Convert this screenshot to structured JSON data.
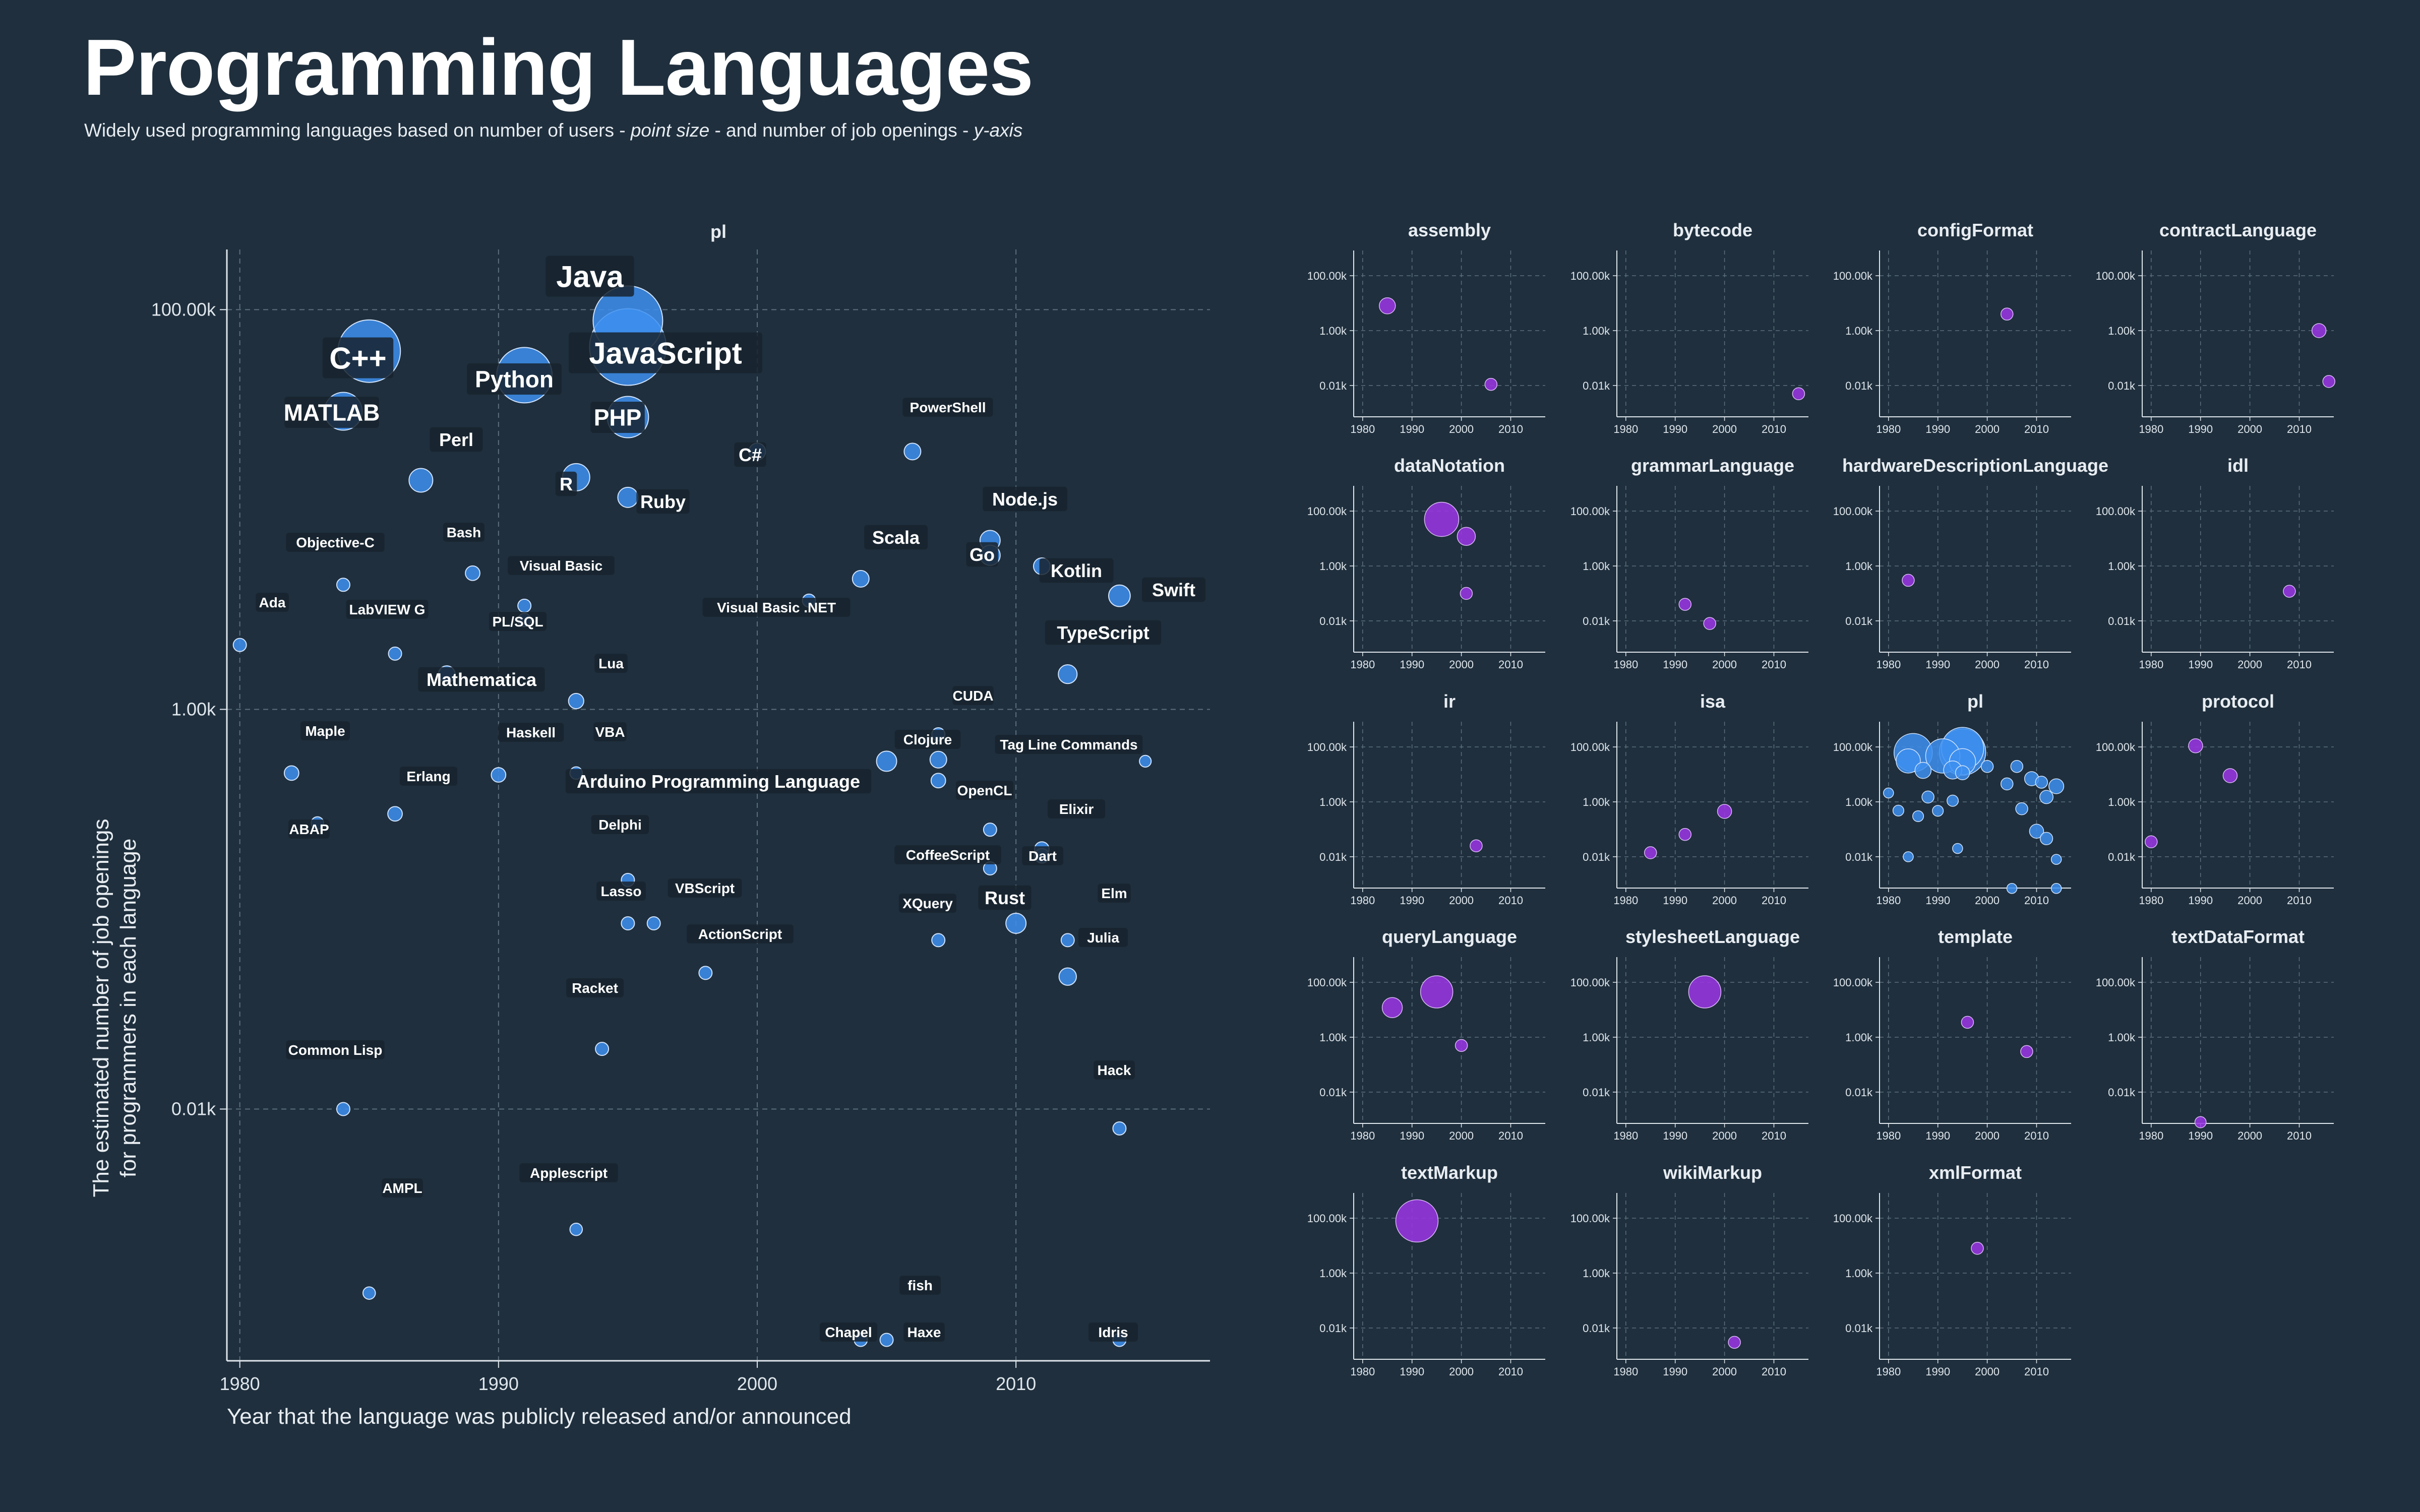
{
  "title": "Programming Languages",
  "subtitle": {
    "part1": "Widely used programming languages based on number of users - ",
    "em1": "point size",
    "part2": " - and number of job openings - ",
    "em2": "y-axis"
  },
  "colors": {
    "background": "#1f2f3d",
    "pl_point": "#3d8ff0",
    "other_point": "#9b35e6",
    "grid": "#5c6e7c",
    "label_bg": "#17232e"
  },
  "chart_data": [
    {
      "type": "scatter",
      "panel": "pl",
      "title": "pl",
      "xlabel": "Year that the language was publicly released and/or announced",
      "ylabel": "The estimated number of job openings for programmers in each language",
      "x_ticks": [
        1980,
        1990,
        2000,
        2010
      ],
      "y_ticks": [
        "0.01k",
        "1.00k",
        "100.00k"
      ],
      "y_scale": "log",
      "xlim": [
        1979.5,
        2017.5
      ],
      "ylim_k": [
        0.00055,
        200
      ],
      "grid": "dashed",
      "points": [
        {
          "name": "Java",
          "x": 1995,
          "y": 88000,
          "users": 9.0,
          "label": "Java",
          "label_size": "xl"
        },
        {
          "name": "JavaScript",
          "x": 1995,
          "y": 65000,
          "users": 10.0,
          "label": "JavaScript",
          "label_size": "xl"
        },
        {
          "name": "C++",
          "x": 1985,
          "y": 62000,
          "users": 8.0,
          "label": "C++",
          "label_size": "xl"
        },
        {
          "name": "Python",
          "x": 1991,
          "y": 47000,
          "users": 7.0,
          "label": "Python",
          "label_size": "lg"
        },
        {
          "name": "MATLAB",
          "x": 1984,
          "y": 31000,
          "users": 4.5,
          "label": "MATLAB",
          "label_size": "lg"
        },
        {
          "name": "PHP",
          "x": 1995,
          "y": 29000,
          "users": 5.0,
          "label": "PHP",
          "label_size": "lg"
        },
        {
          "name": "C#",
          "x": 2000,
          "y": 19500,
          "users": 1.5,
          "label": "C#",
          "label_size": "md"
        },
        {
          "name": "PowerShell",
          "x": 2006,
          "y": 19500,
          "users": 1.5,
          "label": "PowerShell",
          "label_size": "sm"
        },
        {
          "name": "Perl",
          "x": 1987,
          "y": 14000,
          "users": 2.5,
          "label": "Perl",
          "label_size": "md"
        },
        {
          "name": "R",
          "x": 1993,
          "y": 14500,
          "users": 3.0,
          "label": "R",
          "label_size": "md"
        },
        {
          "name": "Ruby",
          "x": 1995,
          "y": 11500,
          "users": 2.0,
          "label": "Ruby",
          "label_size": "md"
        },
        {
          "name": "Node.js",
          "x": 2009,
          "y": 7000,
          "users": 2.0,
          "label": "Node.js",
          "label_size": "md"
        },
        {
          "name": "Go",
          "x": 2009,
          "y": 5900,
          "users": 2.0,
          "label": "Go",
          "label_size": "md"
        },
        {
          "name": "Bash",
          "x": 1989,
          "y": 4800,
          "users": 1.2,
          "label": "Bash",
          "label_size": "sm"
        },
        {
          "name": "Kotlin",
          "x": 2011,
          "y": 5200,
          "users": 1.5,
          "label": "Kotlin",
          "label_size": "md"
        },
        {
          "name": "Scala",
          "x": 2004,
          "y": 4500,
          "users": 1.5,
          "label": "Scala",
          "label_size": "md"
        },
        {
          "name": "Objective-C",
          "x": 1984,
          "y": 4200,
          "users": 1.0,
          "label": "Objective-C",
          "label_size": "sm"
        },
        {
          "name": "Swift",
          "x": 2014,
          "y": 3700,
          "users": 2.2,
          "label": "Swift",
          "label_size": "md"
        },
        {
          "name": "Visual Basic",
          "x": 1991,
          "y": 3300,
          "users": 1.0,
          "label": "Visual Basic",
          "label_size": "sm"
        },
        {
          "name": "Visual Basic .NET",
          "x": 2002,
          "y": 3500,
          "users": 1.0,
          "label": "Visual Basic .NET",
          "label_size": "sm"
        },
        {
          "name": "Visual Basic dup",
          "x": 1991,
          "y": 2800,
          "users": 1.0,
          "label": "",
          "label_size": "sm"
        },
        {
          "name": "Ada",
          "x": 1980,
          "y": 2100,
          "users": 1.0,
          "label": "Ada",
          "label_size": "sm"
        },
        {
          "name": "LabVIEW G",
          "x": 1986,
          "y": 1900,
          "users": 1.0,
          "label": "LabVIEW G",
          "label_size": "sm"
        },
        {
          "name": "PL/SQL",
          "x": 1988,
          "y": 1500,
          "users": 1.5,
          "label": "PL/SQL",
          "label_size": "sm"
        },
        {
          "name": "TypeScript",
          "x": 2012,
          "y": 1500,
          "users": 1.8,
          "label": "TypeScript",
          "label_size": "md"
        },
        {
          "name": "Mathematica",
          "x": 1988,
          "y": 1500,
          "users": 0,
          "label": "Mathematica",
          "label_size": "md"
        },
        {
          "name": "Lua",
          "x": 1993,
          "y": 1100,
          "users": 1.3,
          "label": "Lua",
          "label_size": "sm"
        },
        {
          "name": "CUDA",
          "x": 2007,
          "y": 750,
          "users": 1.0,
          "label": "CUDA",
          "label_size": "sm"
        },
        {
          "name": "Tag Line Commands",
          "x": 2015,
          "y": 550,
          "users": 0.8,
          "label": "Tag Line Commands",
          "label_size": "sm"
        },
        {
          "name": "Clojure",
          "x": 2007,
          "y": 560,
          "users": 1.5,
          "label": "Clojure",
          "label_size": "sm"
        },
        {
          "name": "Arduino Programming Language",
          "x": 2005,
          "y": 550,
          "users": 2.0,
          "label": "Arduino Programming Language",
          "label_size": "md"
        },
        {
          "name": "Maple",
          "x": 1982,
          "y": 480,
          "users": 1.2,
          "label": "Maple",
          "label_size": "sm"
        },
        {
          "name": "Haskell",
          "x": 1990,
          "y": 470,
          "users": 1.2,
          "label": "Haskell",
          "label_size": "sm"
        },
        {
          "name": "VBA",
          "x": 1993,
          "y": 480,
          "users": 0.9,
          "label": "VBA",
          "label_size": "sm"
        },
        {
          "name": "OpenCL",
          "x": 2007,
          "y": 440,
          "users": 1.2,
          "label": "OpenCL",
          "label_size": "sm"
        },
        {
          "name": "Erlang",
          "x": 1986,
          "y": 300,
          "users": 1.2,
          "label": "Erlang",
          "label_size": "sm"
        },
        {
          "name": "ABAP",
          "x": 1983,
          "y": 270,
          "users": 0.9,
          "label": "ABAP",
          "label_size": "sm"
        },
        {
          "name": "Elixir",
          "x": 2009,
          "y": 250,
          "users": 1.0,
          "label": "Elixir",
          "label_size": "sm"
        },
        {
          "name": "Elixir dup",
          "x": 2011,
          "y": 200,
          "users": 1.2,
          "label": "",
          "label_size": "sm"
        },
        {
          "name": "Elixir dup2",
          "x": 2011,
          "y": 185,
          "users": 1.2,
          "label": "",
          "label_size": "sm"
        },
        {
          "name": "OpenCL dup",
          "x": 2009,
          "y": 160,
          "users": 1.0,
          "label": "",
          "label_size": "sm"
        },
        {
          "name": "Delphi",
          "x": 1995,
          "y": 140,
          "users": 1.0,
          "label": "Delphi",
          "label_size": "sm"
        },
        {
          "name": "Delphi dup",
          "x": 1995,
          "y": 85,
          "users": 1.0,
          "label": "",
          "label_size": "sm"
        },
        {
          "name": "Lasso",
          "x": 1996,
          "y": 85,
          "users": 1.0,
          "label": "Lasso",
          "label_size": "sm"
        },
        {
          "name": "CoffeeScript",
          "x": 2007,
          "y": 70,
          "users": 1.0,
          "label": "CoffeeScript",
          "label_size": "sm"
        },
        {
          "name": "Dart",
          "x": 2010,
          "y": 85,
          "users": 2.0,
          "label": "Dart",
          "label_size": "sm"
        },
        {
          "name": "Elm",
          "x": 2012,
          "y": 70,
          "users": 1.0,
          "label": "Elm",
          "label_size": "sm"
        },
        {
          "name": "VBScript",
          "x": 1998,
          "y": 48,
          "users": 1.0,
          "label": "VBScript",
          "label_size": "sm"
        },
        {
          "name": "Rust",
          "x": 2010,
          "y": 85,
          "users": 0,
          "label": "Rust",
          "label_size": "md"
        },
        {
          "name": "XQuery",
          "x": 2007,
          "y": 70,
          "users": 0,
          "label": "XQuery",
          "label_size": "sm"
        },
        {
          "name": "Julia",
          "x": 2012,
          "y": 46,
          "users": 1.6,
          "label": "Julia",
          "label_size": "sm"
        },
        {
          "name": "ActionScript",
          "x": 1998,
          "y": 48,
          "users": 0,
          "label": "ActionScript",
          "label_size": "sm"
        },
        {
          "name": "Racket",
          "x": 1994,
          "y": 20,
          "users": 1.0,
          "label": "Racket",
          "label_size": "sm"
        },
        {
          "name": "Common Lisp",
          "x": 1984,
          "y": 10,
          "users": 1.0,
          "label": "Common Lisp",
          "label_size": "sm"
        },
        {
          "name": "Hack",
          "x": 2014,
          "y": 8,
          "users": 1.0,
          "label": "Hack",
          "label_size": "sm"
        },
        {
          "name": "Applescript",
          "x": 1993,
          "y": 2.5,
          "users": 0.9,
          "label": "Applescript",
          "label_size": "sm"
        },
        {
          "name": "AMPL",
          "x": 1985,
          "y": 1.2,
          "users": 0.9,
          "label": "AMPL",
          "label_size": "sm"
        },
        {
          "name": "fish",
          "x": 2005,
          "y": 0.7,
          "users": 1.0,
          "label": "fish",
          "label_size": "sm"
        },
        {
          "name": "Chapel",
          "x": 2004,
          "y": 0.7,
          "users": 1.0,
          "label": "Chapel",
          "label_size": "sm"
        },
        {
          "name": "Haxe",
          "x": 2005,
          "y": 0.7,
          "users": 0,
          "label": "Haxe",
          "label_size": "sm"
        },
        {
          "name": "Idris",
          "x": 2014,
          "y": 0.7,
          "users": 1.0,
          "label": "Idris",
          "label_size": "sm"
        }
      ]
    },
    {
      "type": "scatter",
      "panel": "small_multiples",
      "x_ticks": [
        1980,
        1990,
        2000,
        2010
      ],
      "y_ticks": [
        "0.01k",
        "1.00k",
        "100.00k"
      ],
      "y_scale": "log",
      "facets": [
        {
          "title": "assembly",
          "points": [
            {
              "x": 1985,
              "y": 8000,
              "users": 2.5
            },
            {
              "x": 2006,
              "y": 11,
              "users": 1.5
            }
          ]
        },
        {
          "title": "bytecode",
          "points": [
            {
              "x": 2015,
              "y": 5,
              "users": 1.5
            }
          ]
        },
        {
          "title": "configFormat",
          "points": [
            {
              "x": 2004,
              "y": 4000,
              "users": 1.5
            }
          ]
        },
        {
          "title": "contractLanguage",
          "points": [
            {
              "x": 2014,
              "y": 1000,
              "users": 2.0
            },
            {
              "x": 2016,
              "y": 14,
              "users": 1.5
            }
          ]
        },
        {
          "title": "dataNotation",
          "points": [
            {
              "x": 1996,
              "y": 50000,
              "users": 7.0
            },
            {
              "x": 2001,
              "y": 12000,
              "users": 3.0
            },
            {
              "x": 2001,
              "y": 100,
              "users": 1.5
            }
          ]
        },
        {
          "title": "grammarLanguage",
          "points": [
            {
              "x": 1992,
              "y": 40,
              "users": 1.5
            },
            {
              "x": 1997,
              "y": 8,
              "users": 1.5
            }
          ]
        },
        {
          "title": "hardwareDescriptionLanguage",
          "points": [
            {
              "x": 1984,
              "y": 300,
              "users": 1.5
            }
          ]
        },
        {
          "title": "idl",
          "points": [
            {
              "x": 2008,
              "y": 120,
              "users": 1.5
            }
          ]
        },
        {
          "title": "ir",
          "points": [
            {
              "x": 2003,
              "y": 25,
              "users": 1.5
            }
          ]
        },
        {
          "title": "isa",
          "points": [
            {
              "x": 1985,
              "y": 14,
              "users": 1.5
            },
            {
              "x": 1992,
              "y": 65,
              "users": 1.5
            },
            {
              "x": 2000,
              "y": 450,
              "users": 2.0
            }
          ]
        },
        {
          "title": "pl",
          "points": [
            {
              "x": 1995,
              "y": 88000,
              "users": 9.0
            },
            {
              "x": 1995,
              "y": 65000,
              "users": 10.0
            },
            {
              "x": 1985,
              "y": 62000,
              "users": 8.0
            },
            {
              "x": 1991,
              "y": 47000,
              "users": 7.0
            },
            {
              "x": 1984,
              "y": 31000,
              "users": 4.5
            },
            {
              "x": 1995,
              "y": 29000,
              "users": 5.0
            },
            {
              "x": 2000,
              "y": 19500,
              "users": 1.5
            },
            {
              "x": 2006,
              "y": 19500,
              "users": 1.5
            },
            {
              "x": 1987,
              "y": 14000,
              "users": 2.5
            },
            {
              "x": 1993,
              "y": 14500,
              "users": 3.0
            },
            {
              "x": 1995,
              "y": 11500,
              "users": 2.0
            },
            {
              "x": 2009,
              "y": 7000,
              "users": 2.0
            },
            {
              "x": 2011,
              "y": 5200,
              "users": 1.5
            },
            {
              "x": 2004,
              "y": 4500,
              "users": 1.5
            },
            {
              "x": 2014,
              "y": 3700,
              "users": 2.2
            },
            {
              "x": 1980,
              "y": 2100,
              "users": 1.0
            },
            {
              "x": 1988,
              "y": 1500,
              "users": 1.5
            },
            {
              "x": 2012,
              "y": 1500,
              "users": 1.8
            },
            {
              "x": 1993,
              "y": 1100,
              "users": 1.3
            },
            {
              "x": 2007,
              "y": 560,
              "users": 1.5
            },
            {
              "x": 1982,
              "y": 480,
              "users": 1.2
            },
            {
              "x": 1990,
              "y": 470,
              "users": 1.2
            },
            {
              "x": 1986,
              "y": 300,
              "users": 1.2
            },
            {
              "x": 2010,
              "y": 85,
              "users": 2.0
            },
            {
              "x": 2012,
              "y": 46,
              "users": 1.6
            },
            {
              "x": 1994,
              "y": 20,
              "users": 1.0
            },
            {
              "x": 1984,
              "y": 10,
              "users": 1.0
            },
            {
              "x": 2014,
              "y": 8,
              "users": 1.0
            },
            {
              "x": 2005,
              "y": 0.7,
              "users": 1.0
            },
            {
              "x": 2014,
              "y": 0.7,
              "users": 1.0
            }
          ]
        },
        {
          "title": "protocol",
          "points": [
            {
              "x": 1989,
              "y": 110000,
              "users": 2.0
            },
            {
              "x": 1996,
              "y": 9000,
              "users": 2.0
            },
            {
              "x": 1980,
              "y": 35,
              "users": 1.5
            }
          ]
        },
        {
          "title": "queryLanguage",
          "points": [
            {
              "x": 1986,
              "y": 12000,
              "users": 3.5
            },
            {
              "x": 1995,
              "y": 45000,
              "users": 6.5
            },
            {
              "x": 2000,
              "y": 500,
              "users": 1.5
            }
          ]
        },
        {
          "title": "stylesheetLanguage",
          "points": [
            {
              "x": 1996,
              "y": 45000,
              "users": 6.5
            }
          ]
        },
        {
          "title": "template",
          "points": [
            {
              "x": 1996,
              "y": 3500,
              "users": 1.5
            },
            {
              "x": 2008,
              "y": 300,
              "users": 1.5
            }
          ]
        },
        {
          "title": "textDataFormat",
          "points": [
            {
              "x": 1990,
              "y": 0.8,
              "users": 1.3
            }
          ]
        },
        {
          "title": "textMarkup",
          "points": [
            {
              "x": 1991,
              "y": 80000,
              "users": 9.0
            }
          ]
        },
        {
          "title": "wikiMarkup",
          "points": [
            {
              "x": 2002,
              "y": 3,
              "users": 1.5
            }
          ]
        },
        {
          "title": "xmlFormat",
          "points": [
            {
              "x": 1998,
              "y": 8000,
              "users": 1.5
            }
          ]
        }
      ]
    }
  ]
}
